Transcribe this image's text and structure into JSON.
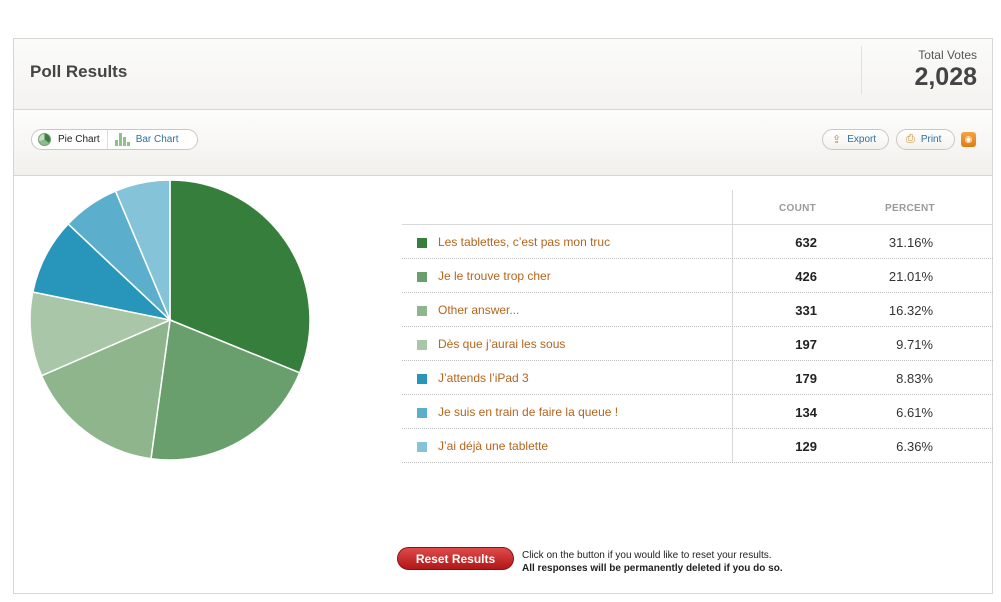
{
  "header": {
    "title": "Poll Results",
    "total_label": "Total Votes",
    "total_value": "2,028"
  },
  "toolbar": {
    "pie_label": "Pie Chart",
    "bar_label": "Bar Chart",
    "export_label": "Export",
    "print_label": "Print",
    "rss_label": "RSS"
  },
  "table": {
    "count_header": "COUNT",
    "percent_header": "PERCENT"
  },
  "chart_data": {
    "type": "pie",
    "categories": [
      "Les tablettes, c’est pas mon truc",
      "Je le trouve trop cher",
      "Other answer...",
      "Dès que j’aurai les sous",
      "J’attends l’iPad 3",
      "Je suis en train de faire la queue !",
      "J’ai déjà une tablette"
    ],
    "counts": [
      632,
      426,
      331,
      197,
      179,
      134,
      129
    ],
    "percents": [
      "31.16%",
      "21.01%",
      "16.32%",
      "9.71%",
      "8.83%",
      "6.61%",
      "6.36%"
    ],
    "values": [
      31.16,
      21.01,
      16.32,
      9.71,
      8.83,
      6.61,
      6.36
    ],
    "colors": [
      "#367e3b",
      "#689f6c",
      "#8eb58c",
      "#a9c6a8",
      "#2895ba",
      "#5bafcc",
      "#84c3d8"
    ]
  },
  "reset": {
    "button_label": "Reset Results",
    "note_line1": "Click on the button if you would like to reset your results.",
    "note_line2": "All responses will be permanently deleted if you do so."
  }
}
